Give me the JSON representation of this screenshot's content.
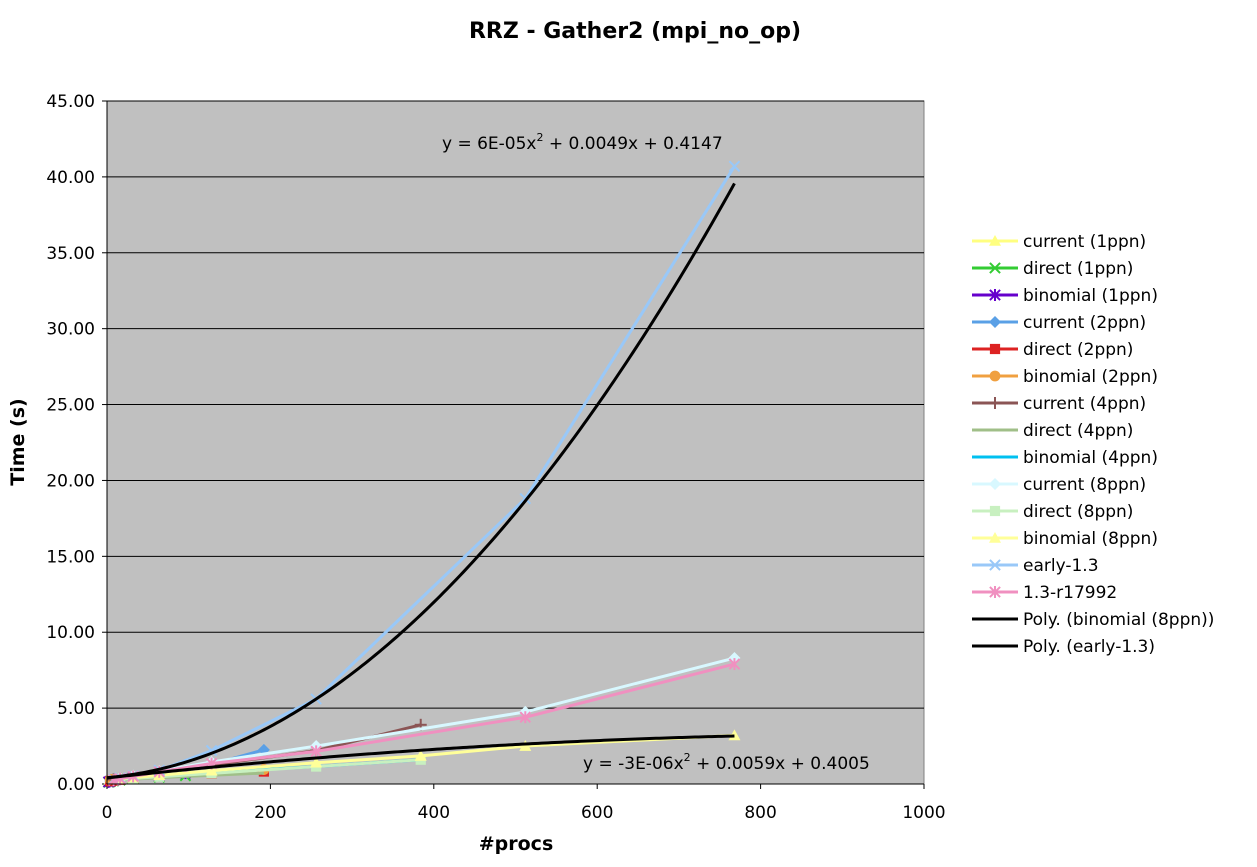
{
  "chart_data": {
    "type": "scatter",
    "title": "RRZ - Gather2 (mpi_no_op)",
    "xlabel": "#procs",
    "ylabel": "Time (s)",
    "xlim": [
      0,
      1000
    ],
    "ylim": [
      0,
      45
    ],
    "x_ticks": [
      "0",
      "200",
      "400",
      "600",
      "800",
      "1000"
    ],
    "y_ticks": [
      "0.00",
      "5.00",
      "10.00",
      "15.00",
      "20.00",
      "25.00",
      "30.00",
      "35.00",
      "40.00",
      "45.00"
    ],
    "grid": "horizontal",
    "plot_background": "#c0c0c0",
    "legend_position": "right",
    "series": [
      {
        "name": "current (1ppn)",
        "color": "#ffff80",
        "marker": "triangle",
        "x": [
          2,
          4,
          8,
          16,
          32
        ],
        "y": [
          0.15,
          0.18,
          0.22,
          0.28,
          0.35
        ]
      },
      {
        "name": "direct (1ppn)",
        "color": "#33cc33",
        "marker": "x",
        "x": [
          2,
          4,
          8,
          16,
          32,
          64,
          96
        ],
        "y": [
          0.12,
          0.15,
          0.2,
          0.26,
          0.35,
          0.45,
          0.55
        ]
      },
      {
        "name": "binomial (1ppn)",
        "color": "#6600cc",
        "marker": "asterisk",
        "x": [
          2,
          4,
          8,
          16,
          32,
          64,
          96
        ],
        "y": [
          0.14,
          0.18,
          0.24,
          0.32,
          0.42,
          0.55,
          0.72
        ]
      },
      {
        "name": "current (2ppn)",
        "color": "#5aa0e6",
        "marker": "diamond",
        "x": [
          4,
          8,
          16,
          32,
          64,
          128,
          192
        ],
        "y": [
          0.2,
          0.25,
          0.35,
          0.5,
          0.8,
          1.3,
          2.25
        ]
      },
      {
        "name": "direct (2ppn)",
        "color": "#dd2222",
        "marker": "square",
        "x": [
          4,
          8,
          16,
          32,
          64,
          128,
          192
        ],
        "y": [
          0.18,
          0.22,
          0.28,
          0.38,
          0.52,
          0.68,
          0.82
        ]
      },
      {
        "name": "binomial (2ppn)",
        "color": "#f0a040",
        "marker": "circle",
        "x": [
          4,
          8,
          16,
          32,
          64,
          128,
          192
        ],
        "y": [
          0.3,
          0.32,
          0.36,
          0.42,
          0.55,
          0.75,
          0.95
        ]
      },
      {
        "name": "current (4ppn)",
        "color": "#8b5555",
        "marker": "plus",
        "x": [
          8,
          16,
          32,
          64,
          128,
          256,
          384
        ],
        "y": [
          0.3,
          0.38,
          0.5,
          0.75,
          1.25,
          2.2,
          3.9
        ]
      },
      {
        "name": "direct (4ppn)",
        "color": "#a0bf88",
        "marker": "none",
        "x": [
          8,
          16,
          32,
          64,
          128,
          192
        ],
        "y": [
          0.22,
          0.26,
          0.32,
          0.42,
          0.58,
          0.72
        ]
      },
      {
        "name": "binomial (4ppn)",
        "color": "#00c0f0",
        "marker": "none",
        "x": [
          8,
          16,
          32,
          64,
          128,
          256,
          384
        ],
        "y": [
          0.28,
          0.32,
          0.38,
          0.5,
          0.75,
          1.15,
          1.6
        ]
      },
      {
        "name": "current (8ppn)",
        "color": "#d8f8ff",
        "marker": "diamond",
        "x": [
          16,
          32,
          64,
          128,
          256,
          512,
          768
        ],
        "y": [
          0.4,
          0.55,
          0.85,
          1.45,
          2.5,
          4.75,
          8.3
        ]
      },
      {
        "name": "direct (8ppn)",
        "color": "#c8f0c0",
        "marker": "square",
        "x": [
          16,
          32,
          64,
          128,
          256,
          384
        ],
        "y": [
          0.3,
          0.36,
          0.48,
          0.7,
          1.15,
          1.6
        ]
      },
      {
        "name": "binomial (8ppn)",
        "color": "#ffff99",
        "marker": "triangle",
        "x": [
          16,
          32,
          64,
          128,
          256,
          384,
          512,
          768
        ],
        "y": [
          0.35,
          0.42,
          0.58,
          0.88,
          1.4,
          1.85,
          2.5,
          3.2
        ]
      },
      {
        "name": "early-1.3",
        "color": "#99c8f8",
        "marker": "x",
        "x": [
          8,
          16,
          32,
          64,
          128,
          256,
          512,
          768
        ],
        "y": [
          0.3,
          0.4,
          0.55,
          0.9,
          2.2,
          5.6,
          18.8,
          40.7
        ]
      },
      {
        "name": "1.3-r17992",
        "color": "#f090c0",
        "marker": "asterisk",
        "x": [
          8,
          16,
          32,
          64,
          128,
          256,
          512,
          768
        ],
        "y": [
          0.25,
          0.35,
          0.5,
          0.8,
          1.35,
          2.15,
          4.4,
          7.9
        ]
      },
      {
        "name": "Poly. (binomial (8ppn))",
        "color": "#000000",
        "marker": "none",
        "trendline": true,
        "x_range": [
          0,
          768
        ],
        "coeffs": [
          -3e-06,
          0.0059,
          0.4005
        ]
      },
      {
        "name": "Poly. (early-1.3)",
        "color": "#000000",
        "marker": "none",
        "trendline": true,
        "x_range": [
          0,
          768
        ],
        "coeffs": [
          6e-05,
          0.0049,
          0.4147
        ]
      }
    ],
    "annotations": [
      {
        "text": "y = 6E-05x",
        "sup": "2",
        "rest": " + 0.0049x + 0.4147"
      },
      {
        "text": "y = -3E-06x",
        "sup": "2",
        "rest": " + 0.0059x + 0.4005"
      }
    ]
  }
}
